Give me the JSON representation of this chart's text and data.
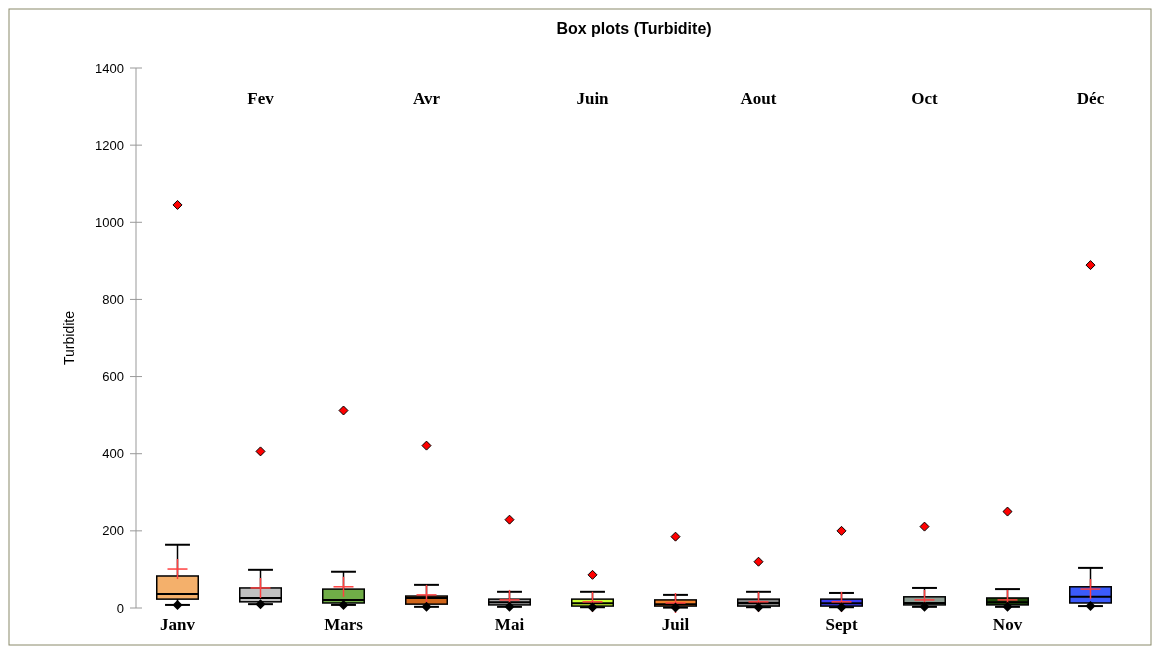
{
  "chart_data": {
    "type": "box",
    "title": "Box plots (Turbidite)",
    "ylabel": "Turbidite",
    "categories": [
      "Janv",
      "Fev",
      "Mars",
      "Avr",
      "Mai",
      "Juin",
      "Juil",
      "Aout",
      "Sept",
      "Oct",
      "Nov",
      "Déc"
    ],
    "colors": [
      "#f4b06b",
      "#c0c0c0",
      "#70ad47",
      "#d0651a",
      "#a6a6a6",
      "#ccff33",
      "#f07f2a",
      "#808080",
      "#3c3cf0",
      "#8a9a90",
      "#1e4a0a",
      "#3b5bfb"
    ],
    "boxes": [
      {
        "low": 8,
        "q1": 23,
        "median": 36,
        "q3": 83,
        "high": 164,
        "mean": 101,
        "outliers": [
          1045
        ]
      },
      {
        "low": 10,
        "q1": 16,
        "median": 26,
        "q3": 52,
        "high": 99,
        "mean": 52,
        "outliers": [
          406
        ]
      },
      {
        "low": 8,
        "q1": 13,
        "median": 21,
        "q3": 49,
        "high": 94,
        "mean": 55,
        "outliers": [
          512
        ]
      },
      {
        "low": 3,
        "q1": 10,
        "median": 26,
        "q3": 31,
        "high": 60,
        "mean": 34,
        "outliers": [
          421
        ]
      },
      {
        "low": 3,
        "q1": 8,
        "median": 15,
        "q3": 23,
        "high": 42,
        "mean": 21,
        "outliers": [
          229
        ]
      },
      {
        "low": 2,
        "q1": 5,
        "median": 12,
        "q3": 23,
        "high": 42,
        "mean": 16,
        "outliers": [
          86
        ]
      },
      {
        "low": 1,
        "q1": 5,
        "median": 10,
        "q3": 21,
        "high": 34,
        "mean": 13,
        "outliers": [
          185
        ]
      },
      {
        "low": 2,
        "q1": 5,
        "median": 13,
        "q3": 23,
        "high": 42,
        "mean": 16,
        "outliers": [
          120
        ]
      },
      {
        "low": 2,
        "q1": 5,
        "median": 12,
        "q3": 23,
        "high": 39,
        "mean": 16,
        "outliers": [
          200
        ]
      },
      {
        "low": 3,
        "q1": 8,
        "median": 13,
        "q3": 29,
        "high": 52,
        "mean": 21,
        "outliers": [
          211
        ]
      },
      {
        "low": 3,
        "q1": 8,
        "median": 15,
        "q3": 26,
        "high": 49,
        "mean": 21,
        "outliers": [
          250
        ]
      },
      {
        "low": 5,
        "q1": 13,
        "median": 29,
        "q3": 55,
        "high": 104,
        "mean": 49,
        "outliers": [
          889
        ]
      }
    ],
    "series": [
      {
        "type": "scatter",
        "x": [
          "Janv",
          "Fev",
          "Mars",
          "Avr",
          "Mai",
          "Juin",
          "Juil",
          "Aout",
          "Sept",
          "Oct",
          "Nov",
          "Déc"
        ],
        "values": [
          8,
          10,
          8,
          3,
          3,
          2,
          1,
          2,
          2,
          3,
          3,
          5
        ],
        "color": "#000000",
        "marker": "diamond"
      }
    ],
    "ylim": [
      0,
      1400
    ],
    "yticks": [
      0,
      200,
      400,
      600,
      800,
      1000,
      1200,
      1400
    ],
    "grid": false
  }
}
